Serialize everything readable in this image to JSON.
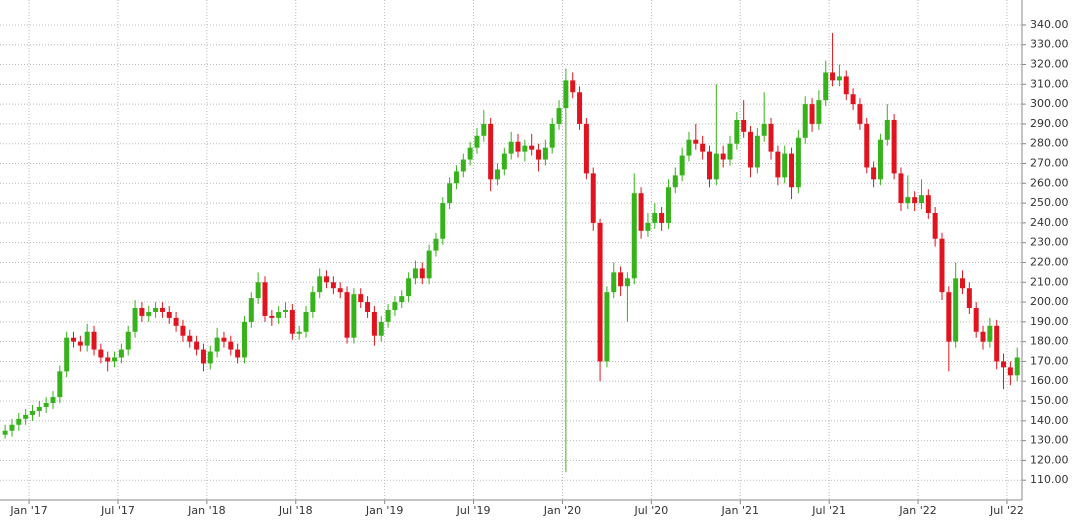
{
  "chart_data": {
    "type": "candlestick",
    "up_color": "#36b21a",
    "down_color": "#e0141e",
    "grid": true,
    "xlim": [
      -8.5,
      290.4
    ],
    "ylim": [
      100,
      352.6
    ],
    "xticks": [
      {
        "value": 0,
        "label": "Jan '17"
      },
      {
        "value": 26,
        "label": "Jul '17"
      },
      {
        "value": 52,
        "label": "Jan '18"
      },
      {
        "value": 78,
        "label": "Jul '18"
      },
      {
        "value": 104,
        "label": "Jan '19"
      },
      {
        "value": 130,
        "label": "Jul '19"
      },
      {
        "value": 156,
        "label": "Jan '20"
      },
      {
        "value": 182,
        "label": "Jul '20"
      },
      {
        "value": 208,
        "label": "Jan '21"
      },
      {
        "value": 234,
        "label": "Jul '21"
      },
      {
        "value": 260,
        "label": "Jan '22"
      },
      {
        "value": 286,
        "label": "Jul '22"
      }
    ],
    "yticks": [
      {
        "value": 110,
        "label": "110.00"
      },
      {
        "value": 120,
        "label": "120.00"
      },
      {
        "value": 130,
        "label": "130.00"
      },
      {
        "value": 140,
        "label": "140.00"
      },
      {
        "value": 150,
        "label": "150.00"
      },
      {
        "value": 160,
        "label": "160.00"
      },
      {
        "value": 170,
        "label": "170.00"
      },
      {
        "value": 180,
        "label": "180.00"
      },
      {
        "value": 190,
        "label": "190.00"
      },
      {
        "value": 200,
        "label": "200.00"
      },
      {
        "value": 210,
        "label": "210.00"
      },
      {
        "value": 220,
        "label": "220.00"
      },
      {
        "value": 230,
        "label": "230.00"
      },
      {
        "value": 240,
        "label": "240.00"
      },
      {
        "value": 250,
        "label": "250.00"
      },
      {
        "value": 260,
        "label": "260.00"
      },
      {
        "value": 270,
        "label": "270.00"
      },
      {
        "value": 280,
        "label": "280.00"
      },
      {
        "value": 290,
        "label": "290.00"
      },
      {
        "value": 300,
        "label": "300.00"
      },
      {
        "value": 310,
        "label": "310.00"
      },
      {
        "value": 320,
        "label": "320.00"
      },
      {
        "value": 330,
        "label": "330.00"
      },
      {
        "value": 340,
        "label": "340.00"
      }
    ],
    "x": [
      -7,
      -5,
      -3,
      -1,
      1,
      3,
      5,
      7,
      9,
      11,
      13,
      15,
      17,
      19,
      21,
      23,
      25,
      27,
      29,
      31,
      33,
      35,
      37,
      39,
      41,
      43,
      45,
      47,
      49,
      51,
      53,
      55,
      57,
      59,
      61,
      63,
      65,
      67,
      69,
      71,
      73,
      75,
      77,
      79,
      81,
      83,
      85,
      87,
      89,
      91,
      93,
      95,
      97,
      99,
      101,
      103,
      105,
      107,
      109,
      111,
      113,
      115,
      117,
      119,
      121,
      123,
      125,
      127,
      129,
      131,
      133,
      135,
      137,
      139,
      141,
      143,
      145,
      147,
      149,
      151,
      153,
      155,
      157,
      159,
      161,
      163,
      165,
      167,
      169,
      171,
      173,
      175,
      177,
      179,
      181,
      183,
      185,
      187,
      189,
      191,
      193,
      195,
      197,
      199,
      201,
      203,
      205,
      207,
      209,
      211,
      213,
      215,
      217,
      219,
      221,
      223,
      225,
      227,
      229,
      231,
      233,
      235,
      237,
      239,
      241,
      243,
      245,
      247,
      249,
      251,
      253,
      255,
      257,
      259,
      261,
      263,
      265,
      267,
      269,
      271,
      273,
      275,
      277,
      279,
      281,
      283,
      285,
      287,
      289
    ],
    "open": [
      133,
      135,
      138,
      141,
      143,
      145,
      147,
      149,
      152,
      165,
      182,
      180,
      178,
      185,
      176,
      172,
      170,
      172,
      176,
      185,
      197,
      193,
      195,
      197,
      195,
      192,
      188,
      183,
      180,
      176,
      169,
      175,
      182,
      180,
      176,
      172,
      190,
      202,
      210,
      193,
      192,
      195,
      196,
      184,
      185,
      195,
      205,
      213,
      210,
      207,
      205,
      182,
      204,
      200,
      195,
      183,
      190,
      196,
      200,
      203,
      212,
      217,
      212,
      226,
      232,
      250,
      260,
      266,
      272,
      278,
      284,
      290,
      262,
      267,
      275,
      281,
      276,
      279,
      277,
      272,
      278,
      290,
      298,
      312,
      306,
      290,
      265,
      240,
      170,
      205,
      215,
      208,
      212,
      255,
      236,
      240,
      245,
      240,
      258,
      264,
      274,
      282,
      280,
      276,
      262,
      275,
      272,
      280,
      292,
      286,
      268,
      284,
      290,
      276,
      263,
      275,
      258,
      283,
      300,
      290,
      302,
      316,
      312,
      314,
      305,
      300,
      290,
      268,
      262,
      282,
      292,
      265,
      250,
      253,
      250,
      254,
      245,
      232,
      205,
      180,
      212,
      207,
      197,
      185,
      180,
      188,
      170,
      167,
      163
    ],
    "high": [
      138,
      141,
      144,
      146,
      148,
      150,
      152,
      155,
      168,
      185,
      185,
      183,
      189,
      188,
      179,
      175,
      175,
      179,
      188,
      201,
      200,
      198,
      200,
      200,
      198,
      195,
      191,
      186,
      183,
      179,
      178,
      187,
      185,
      183,
      179,
      193,
      205,
      215,
      213,
      196,
      198,
      200,
      199,
      188,
      198,
      208,
      217,
      216,
      213,
      210,
      208,
      207,
      207,
      203,
      198,
      193,
      199,
      203,
      206,
      215,
      221,
      220,
      229,
      235,
      253,
      263,
      269,
      275,
      281,
      288,
      297,
      293,
      270,
      278,
      286,
      285,
      282,
      285,
      280,
      282,
      293,
      302,
      318,
      316,
      309,
      293,
      268,
      242,
      208,
      220,
      218,
      215,
      265,
      258,
      245,
      250,
      248,
      262,
      268,
      278,
      286,
      290,
      284,
      279,
      310,
      279,
      284,
      296,
      302,
      289,
      288,
      306,
      293,
      279,
      279,
      278,
      287,
      304,
      303,
      307,
      322,
      336,
      320,
      317,
      308,
      303,
      293,
      271,
      285,
      300,
      295,
      268,
      264,
      256,
      262,
      257,
      248,
      235,
      208,
      220,
      216,
      210,
      200,
      188,
      192,
      191,
      174,
      170,
      177
    ],
    "low": [
      131,
      132,
      135,
      138,
      140,
      142,
      144,
      146,
      149,
      162,
      177,
      175,
      175,
      173,
      169,
      165,
      167,
      169,
      173,
      182,
      190,
      190,
      192,
      192,
      189,
      185,
      180,
      177,
      173,
      165,
      166,
      172,
      177,
      173,
      169,
      169,
      187,
      199,
      190,
      188,
      189,
      192,
      181,
      181,
      182,
      192,
      202,
      207,
      204,
      202,
      179,
      179,
      197,
      192,
      178,
      180,
      187,
      193,
      197,
      200,
      209,
      209,
      209,
      223,
      229,
      247,
      257,
      263,
      269,
      275,
      281,
      256,
      259,
      264,
      272,
      273,
      271,
      274,
      266,
      269,
      275,
      287,
      114,
      303,
      287,
      262,
      236,
      160,
      167,
      202,
      203,
      190,
      209,
      232,
      233,
      237,
      236,
      237,
      255,
      261,
      271,
      277,
      272,
      258,
      259,
      268,
      269,
      277,
      283,
      263,
      265,
      281,
      272,
      259,
      260,
      252,
      255,
      280,
      286,
      287,
      299,
      309,
      309,
      302,
      297,
      287,
      265,
      258,
      259,
      279,
      262,
      246,
      247,
      246,
      247,
      242,
      228,
      201,
      165,
      177,
      204,
      194,
      182,
      176,
      177,
      166,
      156,
      158,
      160
    ],
    "close": [
      135,
      138,
      141,
      143,
      145,
      147,
      149,
      152,
      165,
      182,
      180,
      178,
      185,
      176,
      172,
      170,
      172,
      176,
      185,
      197,
      193,
      195,
      197,
      195,
      192,
      188,
      183,
      180,
      176,
      169,
      175,
      182,
      180,
      176,
      172,
      190,
      202,
      210,
      193,
      192,
      195,
      196,
      184,
      185,
      195,
      205,
      213,
      210,
      207,
      205,
      182,
      204,
      200,
      195,
      183,
      190,
      196,
      200,
      203,
      212,
      217,
      212,
      226,
      232,
      250,
      260,
      266,
      272,
      278,
      284,
      290,
      262,
      267,
      275,
      281,
      276,
      279,
      277,
      272,
      278,
      290,
      298,
      312,
      306,
      290,
      265,
      240,
      170,
      205,
      215,
      208,
      212,
      255,
      236,
      240,
      245,
      240,
      258,
      264,
      274,
      282,
      280,
      276,
      262,
      275,
      272,
      280,
      292,
      286,
      268,
      284,
      290,
      276,
      263,
      275,
      258,
      283,
      300,
      290,
      302,
      316,
      312,
      314,
      305,
      300,
      290,
      268,
      262,
      282,
      292,
      265,
      250,
      253,
      250,
      254,
      245,
      232,
      205,
      180,
      212,
      207,
      197,
      185,
      180,
      188,
      170,
      167,
      163,
      172
    ]
  }
}
